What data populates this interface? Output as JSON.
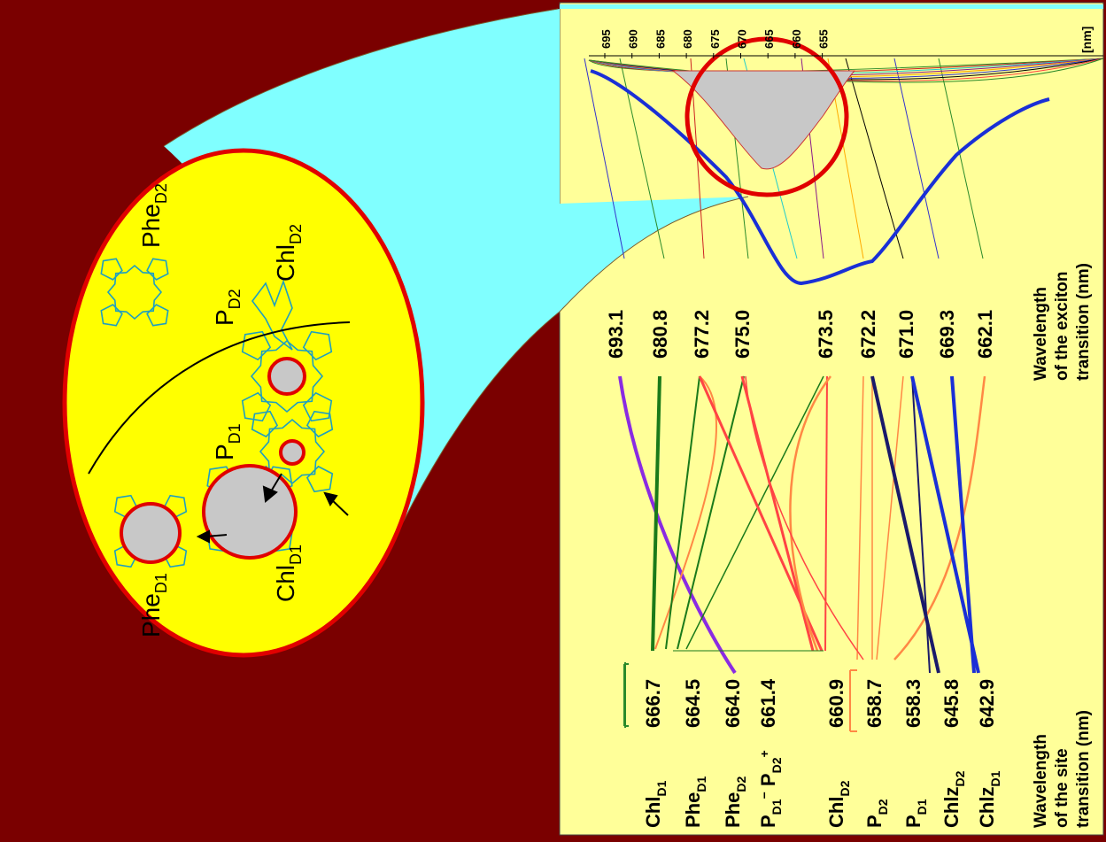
{
  "colors": {
    "background": "#7a0000",
    "panel": "#ffff99",
    "ellipse_fill": "#ffff00",
    "ellipse_stroke": "#e00000",
    "magnifier": "#80ffff",
    "molecule": "#1e9fc0",
    "exciton_curve": "#1a2fd6",
    "peak_fill": "#c8c8c8"
  },
  "molecule_view": {
    "labels": {
      "phe_d2": {
        "main": "Phe",
        "sub": "D2"
      },
      "chl_d2": {
        "main": "Chl",
        "sub": "D2"
      },
      "p_d2": {
        "main": "P",
        "sub": "D2"
      },
      "p_d1": {
        "main": "P",
        "sub": "D1"
      },
      "phe_d1": {
        "main": "Phe",
        "sub": "D1"
      },
      "chl_d1": {
        "main": "Chl",
        "sub": "D1"
      }
    }
  },
  "spectrum_axis": {
    "unit": "[nm]",
    "ticks": [
      "695",
      "690",
      "685",
      "680",
      "675",
      "670",
      "665",
      "660",
      "655"
    ]
  },
  "exciton_transitions": {
    "caption": [
      "Wavelength",
      "of the exciton",
      "transition (nm)"
    ],
    "values": [
      "693.1",
      "680.8",
      "677.2",
      "675.0",
      "673.5",
      "672.2",
      "671.0",
      "669.3",
      "662.1"
    ]
  },
  "site_transitions": {
    "caption": [
      "Wavelength",
      "of the site",
      "transition (nm)"
    ],
    "rows": [
      {
        "main": "Chl",
        "sub": "D1",
        "value": "666.7"
      },
      {
        "main": "Phe",
        "sub": "D1",
        "value": "664.5"
      },
      {
        "main": "Phe",
        "sub": "D2",
        "value": "664.0"
      },
      {
        "main": "P",
        "sub": "D1",
        "sup": "−",
        "main2": "P",
        "sub2": "D2",
        "sup2": "+",
        "value": "661.4"
      },
      {
        "main": "Chl",
        "sub": "D2",
        "value": "660.9"
      },
      {
        "main": "P",
        "sub": "D2",
        "value": "658.7"
      },
      {
        "main": "P",
        "sub": "D1",
        "value": "658.3"
      },
      {
        "main": "Chlz",
        "sub": "D2",
        "value": "645.8"
      },
      {
        "main": "Chlz",
        "sub": "D1",
        "value": "642.9"
      }
    ]
  }
}
